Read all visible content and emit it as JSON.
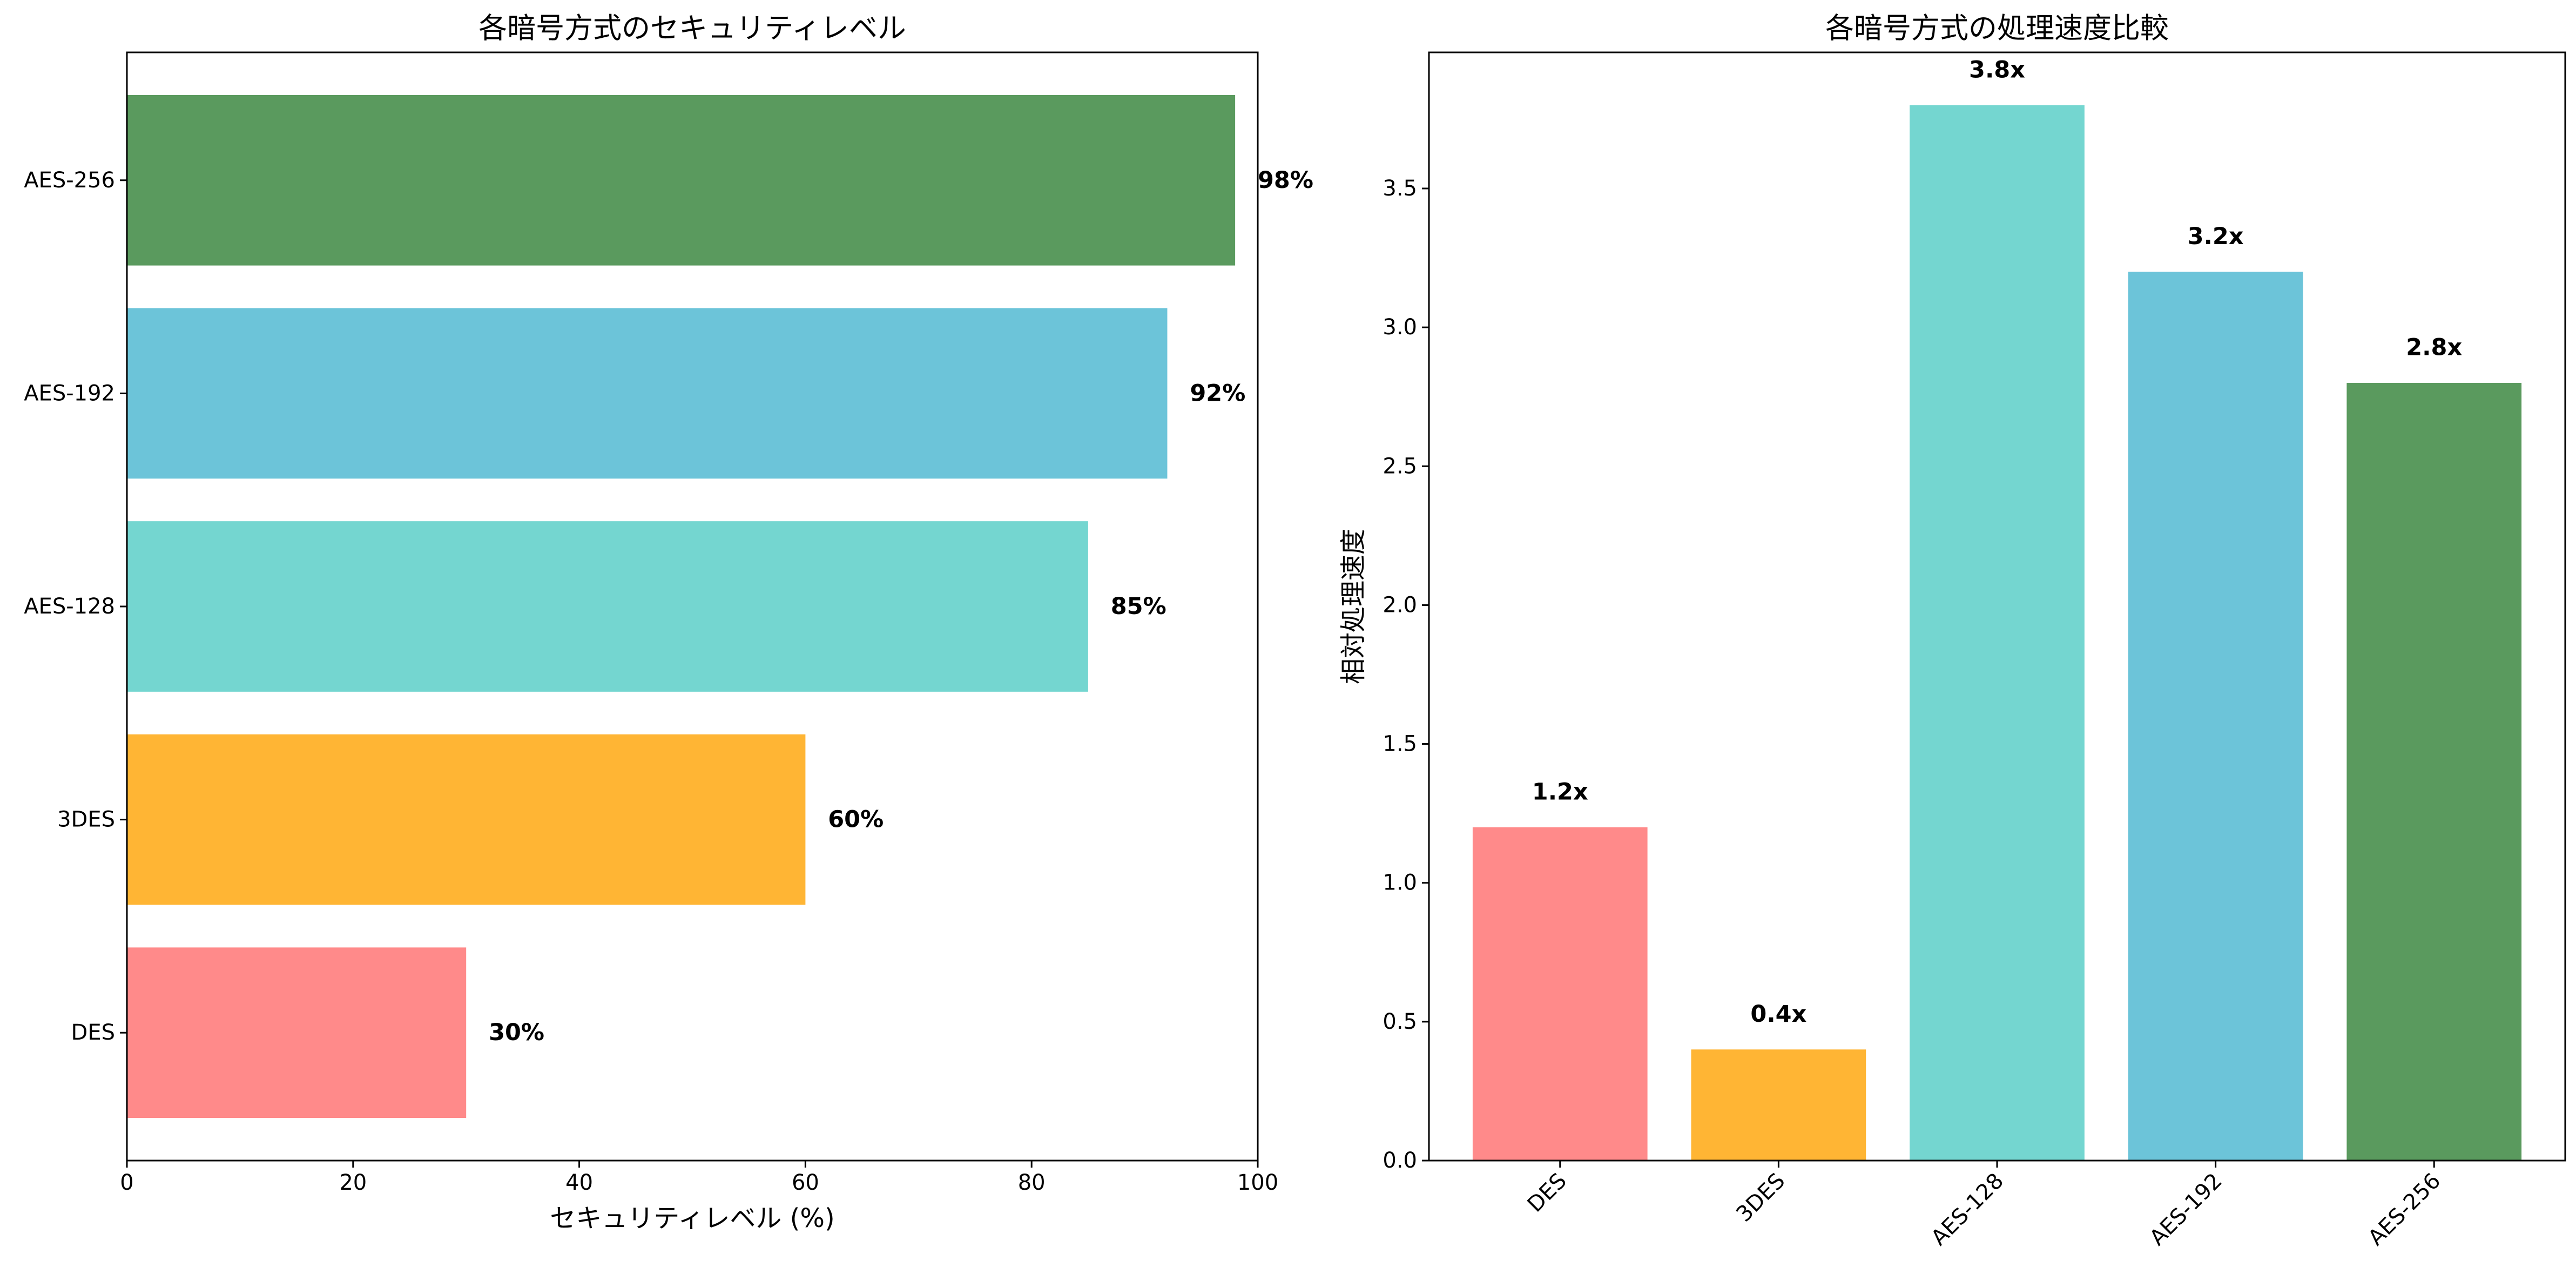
{
  "chart_data": [
    {
      "type": "bar",
      "orientation": "horizontal",
      "title": "各暗号方式のセキュリティレベル",
      "xlabel": "セキュリティレベル (%)",
      "ylabel": "",
      "categories": [
        "DES",
        "3DES",
        "AES-128",
        "AES-192",
        "AES-256"
      ],
      "values": [
        30,
        60,
        85,
        92,
        98
      ],
      "data_labels": [
        "30%",
        "60%",
        "85%",
        "92%",
        "98%"
      ],
      "colors": [
        "#ff8a8a",
        "#ffb534",
        "#74d6d0",
        "#6cc4d9",
        "#5a9a5e"
      ],
      "xlim": [
        0,
        100
      ],
      "xticks": [
        0,
        20,
        40,
        60,
        80,
        100
      ],
      "xtick_labels": [
        "0",
        "20",
        "40",
        "60",
        "80",
        "100"
      ],
      "grid": false,
      "legend": false
    },
    {
      "type": "bar",
      "orientation": "vertical",
      "title": "各暗号方式の処理速度比較",
      "xlabel": "",
      "ylabel": "相対処理速度",
      "categories": [
        "DES",
        "3DES",
        "AES-128",
        "AES-192",
        "AES-256"
      ],
      "values": [
        1.2,
        0.4,
        3.8,
        3.2,
        2.8
      ],
      "data_labels": [
        "1.2x",
        "0.4x",
        "3.8x",
        "3.2x",
        "2.8x"
      ],
      "colors": [
        "#ff8a8a",
        "#ffb534",
        "#74d6d0",
        "#6cc4d9",
        "#5a9a5e"
      ],
      "ylim": [
        0,
        3.99
      ],
      "yticks": [
        0,
        0.5,
        1,
        1.5,
        2,
        2.5,
        3,
        3.5
      ],
      "ytick_labels": [
        "0.0",
        "0.5",
        "1.0",
        "1.5",
        "2.0",
        "2.5",
        "3.0",
        "3.5"
      ],
      "xtick_rotation": 45,
      "grid": false,
      "legend": false
    }
  ]
}
